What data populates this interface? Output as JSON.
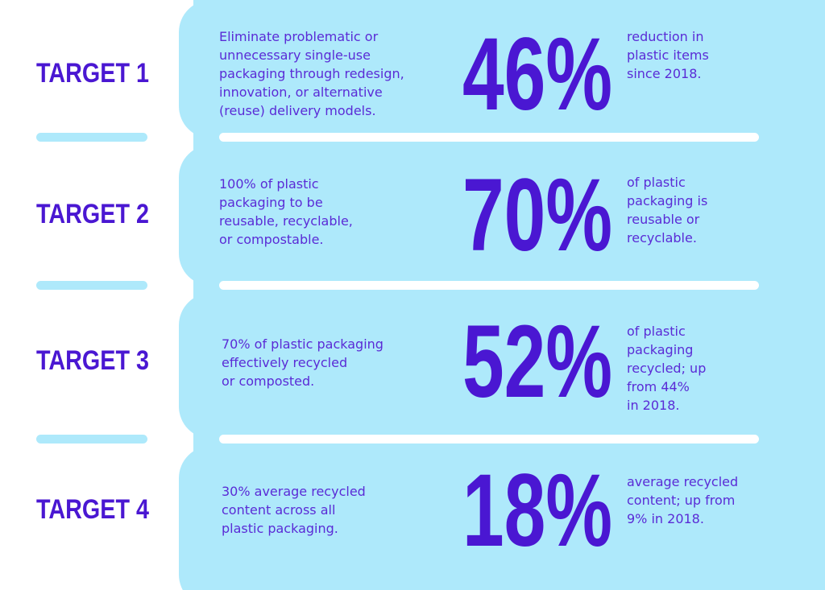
{
  "targets": [
    {
      "label": "TARGET 1",
      "description": [
        "Eliminate problematic or",
        "unnecessary single-use",
        "packaging through redesign,",
        "innovation, or alternative",
        "(reuse) delivery models."
      ],
      "stat": "46%",
      "note": [
        "reduction in",
        "plastic items",
        "since 2018."
      ]
    },
    {
      "label": "TARGET 2",
      "description": [
        "100% of plastic",
        "packaging to be",
        "reusable, recyclable,",
        "or compostable."
      ],
      "stat": "70%",
      "note": [
        "of plastic",
        "packaging is",
        "reusable or",
        "recyclable."
      ]
    },
    {
      "label": "TARGET 3",
      "description": [
        "70% of plastic packaging",
        "effectively recycled",
        "or composted."
      ],
      "stat": "52%",
      "note": [
        "of plastic",
        "packaging",
        "recycled; up",
        "from 44%",
        "in 2018."
      ]
    },
    {
      "label": "TARGET 4",
      "description": [
        "30% average recycled",
        "content across all",
        "plastic packaging."
      ],
      "stat": "18%",
      "note": [
        "average recycled",
        "content; up from",
        "9% in 2018."
      ]
    }
  ]
}
